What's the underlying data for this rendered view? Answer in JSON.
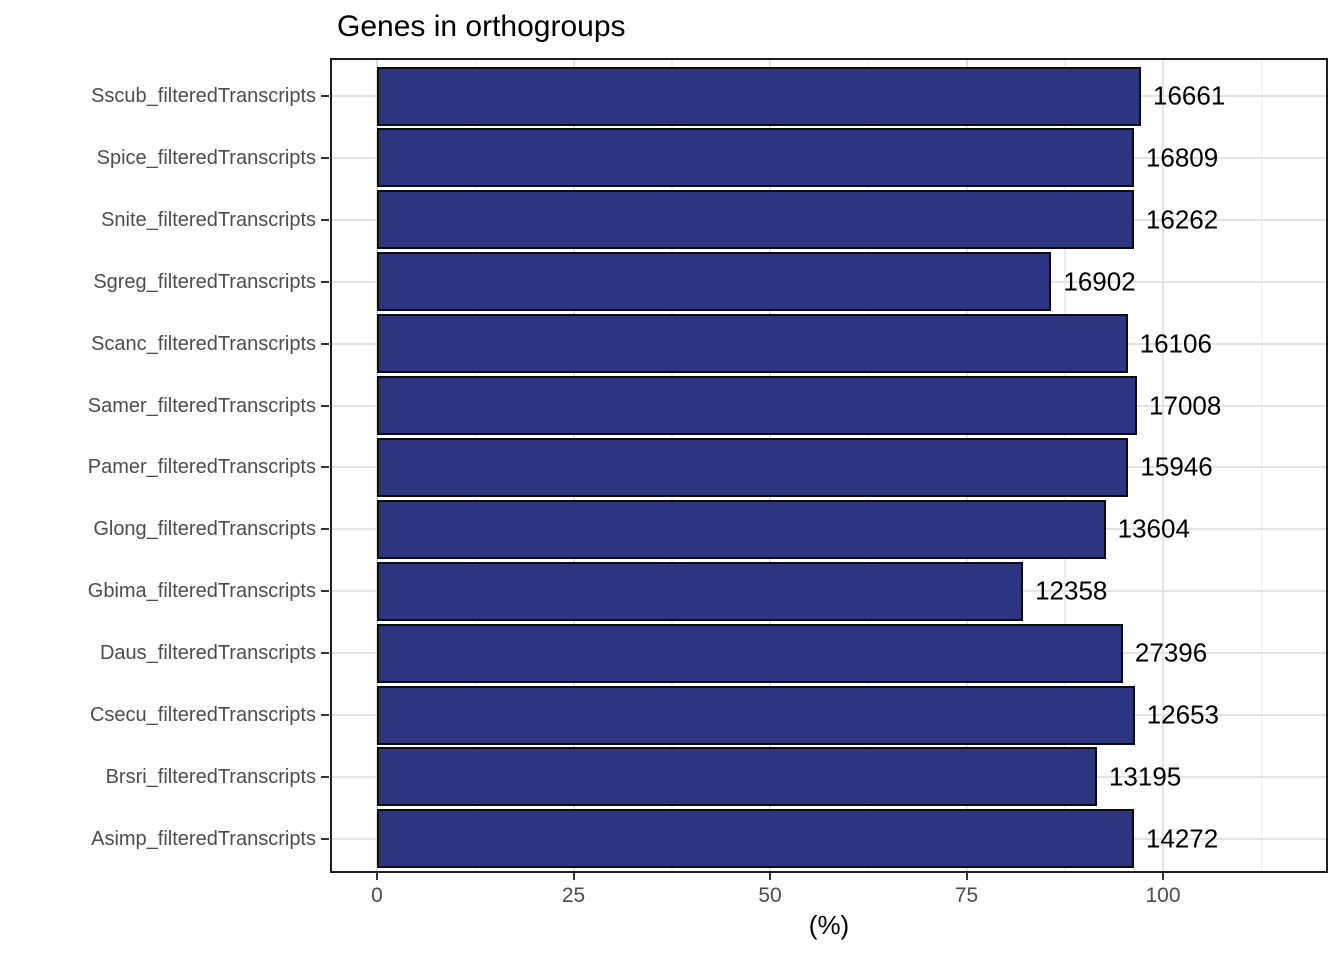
{
  "title": "Genes in orthogroups",
  "x_axis": {
    "label": "(%)",
    "tick_labels": [
      "0",
      "25",
      "50",
      "75",
      "100"
    ]
  },
  "chart_data": {
    "type": "bar",
    "orientation": "horizontal",
    "title": "Genes in orthogroups",
    "xlabel": "(%)",
    "ylabel": "",
    "x_ticks": [
      0,
      25,
      50,
      75,
      100
    ],
    "xlim": [
      -5,
      121
    ],
    "grid": "on",
    "legend": "none",
    "categories": [
      "Sscub_filteredTranscripts",
      "Spice_filteredTranscripts",
      "Snite_filteredTranscripts",
      "Sgreg_filteredTranscripts",
      "Scanc_filteredTranscripts",
      "Samer_filteredTranscripts",
      "Pamer_filteredTranscripts",
      "Glong_filteredTranscripts",
      "Gbima_filteredTranscripts",
      "Daus_filteredTranscripts",
      "Csecu_filteredTranscripts",
      "Brsri_filteredTranscripts",
      "Asimp_filteredTranscripts"
    ],
    "series": [
      {
        "name": "percent_genes_in_orthogroups",
        "values": [
          97.2,
          96.3,
          96.3,
          85.8,
          95.5,
          96.7,
          95.6,
          92.7,
          82.2,
          94.9,
          96.4,
          91.6,
          96.3
        ]
      },
      {
        "name": "gene_count_labels",
        "values": [
          16661,
          16809,
          16262,
          16902,
          16106,
          17008,
          15946,
          13604,
          12358,
          27396,
          12653,
          13195,
          14272
        ]
      }
    ]
  },
  "colors": {
    "bar_fill": "#2d3580",
    "bar_stroke": "#0d0d0d",
    "panel_border": "#1f1f1f",
    "grid_major": "#e3e3e3",
    "grid_minor": "#ededed",
    "axis_text": "#4d4d4d",
    "title_text": "#000000"
  }
}
